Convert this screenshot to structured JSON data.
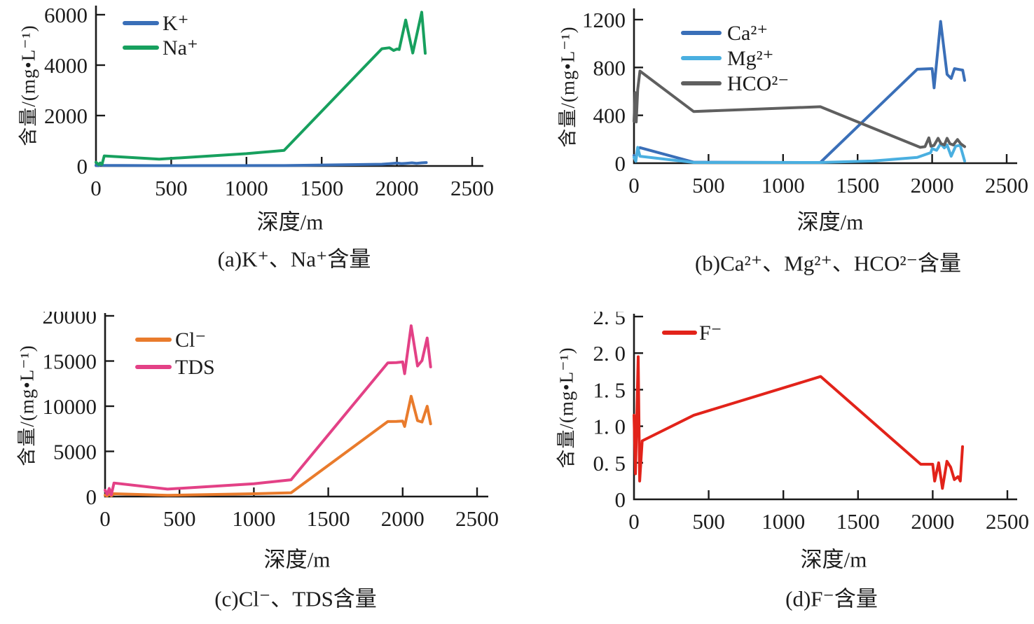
{
  "figure": {
    "background": "#ffffff",
    "text_color": "#1c1c1c",
    "axis_color": "#1a1a1a"
  },
  "chart_data": [
    {
      "id": "a",
      "type": "line",
      "caption": "(a)K⁺、Na⁺含量",
      "xlabel": "深度/m",
      "ylabel": "含量/(mg•L⁻¹)",
      "xlim": [
        0,
        2500
      ],
      "ylim": [
        0,
        6000
      ],
      "xticks": [
        0,
        500,
        1000,
        1500,
        2000,
        2500
      ],
      "xtick_labels": [
        "0",
        "500",
        "1000",
        "1500",
        "2000",
        "2500"
      ],
      "yticks": [
        0,
        2000,
        4000,
        6000
      ],
      "ytick_labels": [
        "0",
        "2000",
        "4000",
        "6000"
      ],
      "grid": false,
      "legend_position": "upper-left-inside",
      "series": [
        {
          "name": "K⁺",
          "color": "#3A6FB8",
          "points": [
            [
              0,
              25
            ],
            [
              15,
              10
            ],
            [
              30,
              45
            ],
            [
              50,
              25
            ],
            [
              400,
              15
            ],
            [
              1250,
              18
            ],
            [
              1900,
              70
            ],
            [
              1950,
              90
            ],
            [
              2000,
              115
            ],
            [
              2030,
              95
            ],
            [
              2060,
              105
            ],
            [
              2100,
              125
            ],
            [
              2130,
              105
            ],
            [
              2165,
              125
            ],
            [
              2195,
              135
            ]
          ]
        },
        {
          "name": "Na⁺",
          "color": "#17A05E",
          "points": [
            [
              0,
              150
            ],
            [
              18,
              50
            ],
            [
              28,
              120
            ],
            [
              40,
              60
            ],
            [
              55,
              400
            ],
            [
              420,
              270
            ],
            [
              1000,
              490
            ],
            [
              1250,
              620
            ],
            [
              1900,
              4650
            ],
            [
              1950,
              4690
            ],
            [
              1978,
              4580
            ],
            [
              2000,
              4640
            ],
            [
              2015,
              4620
            ],
            [
              2058,
              5790
            ],
            [
              2105,
              4480
            ],
            [
              2165,
              6100
            ],
            [
              2188,
              4470
            ]
          ]
        }
      ]
    },
    {
      "id": "b",
      "type": "line",
      "caption": "(b)Ca²⁺、Mg²⁺、HCO²⁻含量",
      "xlabel": "深度/m",
      "ylabel": "含量/(mg•L⁻¹)",
      "xlim": [
        0,
        2500
      ],
      "ylim": [
        0,
        1200
      ],
      "xticks": [
        0,
        500,
        1000,
        1500,
        2000,
        2500
      ],
      "xtick_labels": [
        "0",
        "500",
        "1000",
        "1500",
        "2000",
        "2500"
      ],
      "yticks": [
        0,
        400,
        800,
        1200
      ],
      "ytick_labels": [
        "0",
        "400",
        "800",
        "1200"
      ],
      "grid": false,
      "legend_position": "upper-left-inside",
      "series": [
        {
          "name": "Ca²⁺",
          "color": "#3A6FB8",
          "points": [
            [
              0,
              65
            ],
            [
              12,
              25
            ],
            [
              25,
              115
            ],
            [
              40,
              130
            ],
            [
              400,
              8
            ],
            [
              1250,
              6
            ],
            [
              1900,
              785
            ],
            [
              1955,
              788
            ],
            [
              2000,
              790
            ],
            [
              2013,
              630
            ],
            [
              2057,
              1185
            ],
            [
              2100,
              742
            ],
            [
              2128,
              708
            ],
            [
              2150,
              790
            ],
            [
              2180,
              783
            ],
            [
              2205,
              778
            ],
            [
              2218,
              692
            ]
          ]
        },
        {
          "name": "Mg²⁺",
          "color": "#4AAFE0",
          "points": [
            [
              0,
              50
            ],
            [
              12,
              15
            ],
            [
              25,
              132
            ],
            [
              40,
              58
            ],
            [
              400,
              6
            ],
            [
              1250,
              6
            ],
            [
              1600,
              18
            ],
            [
              1900,
              48
            ],
            [
              1990,
              88
            ],
            [
              2000,
              122
            ],
            [
              2030,
              108
            ],
            [
              2057,
              162
            ],
            [
              2082,
              128
            ],
            [
              2100,
              152
            ],
            [
              2128,
              58
            ],
            [
              2158,
              142
            ],
            [
              2188,
              150
            ],
            [
              2218,
              18
            ]
          ]
        },
        {
          "name": "HCO²⁻",
          "color": "#5F5F5F",
          "points": [
            [
              0,
              350
            ],
            [
              8,
              590
            ],
            [
              15,
              345
            ],
            [
              25,
              615
            ],
            [
              40,
              770
            ],
            [
              400,
              432
            ],
            [
              1250,
              472
            ],
            [
              1920,
              132
            ],
            [
              1952,
              138
            ],
            [
              1978,
              212
            ],
            [
              1992,
              142
            ],
            [
              2012,
              148
            ],
            [
              2040,
              208
            ],
            [
              2060,
              162
            ],
            [
              2082,
              152
            ],
            [
              2100,
              208
            ],
            [
              2120,
              162
            ],
            [
              2142,
              152
            ],
            [
              2170,
              198
            ],
            [
              2192,
              162
            ],
            [
              2218,
              138
            ]
          ]
        }
      ]
    },
    {
      "id": "c",
      "type": "line",
      "caption": "(c)Cl⁻、TDS含量",
      "xlabel": "深度/m",
      "ylabel": "含量/(mg•L⁻¹)",
      "xlim": [
        0,
        2500
      ],
      "ylim": [
        0,
        20000
      ],
      "xticks": [
        0,
        500,
        1000,
        1500,
        2000,
        2500
      ],
      "xtick_labels": [
        "0",
        "500",
        "1000",
        "1500",
        "2000",
        "2500"
      ],
      "yticks": [
        0,
        5000,
        10000,
        15000,
        20000
      ],
      "ytick_labels": [
        "0",
        "5000",
        "10000",
        "15000",
        "20000"
      ],
      "grid": false,
      "legend_position": "upper-left-inside",
      "series": [
        {
          "name": "Cl⁻",
          "color": "#E97B2C",
          "points": [
            [
              0,
              150
            ],
            [
              14,
              60
            ],
            [
              28,
              280
            ],
            [
              42,
              80
            ],
            [
              60,
              310
            ],
            [
              420,
              130
            ],
            [
              1000,
              310
            ],
            [
              1250,
              420
            ],
            [
              1900,
              8300
            ],
            [
              1958,
              8320
            ],
            [
              2000,
              8350
            ],
            [
              2013,
              7750
            ],
            [
              2057,
              11100
            ],
            [
              2100,
              8400
            ],
            [
              2130,
              8250
            ],
            [
              2165,
              10000
            ],
            [
              2188,
              8050
            ]
          ]
        },
        {
          "name": "TDS",
          "color": "#E34186",
          "points": [
            [
              0,
              700
            ],
            [
              14,
              250
            ],
            [
              28,
              900
            ],
            [
              42,
              180
            ],
            [
              60,
              1500
            ],
            [
              420,
              820
            ],
            [
              1000,
              1420
            ],
            [
              1250,
              1850
            ],
            [
              1900,
              14800
            ],
            [
              1958,
              14830
            ],
            [
              2000,
              14900
            ],
            [
              2013,
              13600
            ],
            [
              2057,
              18900
            ],
            [
              2100,
              14450
            ],
            [
              2130,
              15050
            ],
            [
              2165,
              17550
            ],
            [
              2188,
              14350
            ]
          ]
        }
      ]
    },
    {
      "id": "d",
      "type": "line",
      "caption": "(d)F⁻含量",
      "xlabel": "深度/m",
      "ylabel": "含量/(mg•L⁻¹)",
      "xlim": [
        0,
        2500
      ],
      "ylim": [
        0,
        2.5
      ],
      "xticks": [
        0,
        500,
        1000,
        1500,
        2000,
        2500
      ],
      "xtick_labels": [
        "0",
        "500",
        "1000",
        "1500",
        "2000",
        "2500"
      ],
      "yticks": [
        0,
        0.5,
        1.0,
        1.5,
        2.0,
        2.5
      ],
      "ytick_labels": [
        "0",
        "0. 5",
        "1. 0",
        "1. 5",
        "2. 0",
        "2. 5"
      ],
      "grid": false,
      "legend_position": "upper-left-inside",
      "series": [
        {
          "name": "F⁻",
          "color": "#E2231A",
          "points": [
            [
              0,
              1.15
            ],
            [
              10,
              0.35
            ],
            [
              18,
              1.05
            ],
            [
              28,
              1.95
            ],
            [
              38,
              0.25
            ],
            [
              55,
              0.8
            ],
            [
              400,
              1.15
            ],
            [
              1250,
              1.68
            ],
            [
              1920,
              0.48
            ],
            [
              2000,
              0.48
            ],
            [
              2013,
              0.25
            ],
            [
              2040,
              0.5
            ],
            [
              2065,
              0.15
            ],
            [
              2095,
              0.52
            ],
            [
              2120,
              0.44
            ],
            [
              2145,
              0.27
            ],
            [
              2170,
              0.31
            ],
            [
              2185,
              0.25
            ],
            [
              2200,
              0.72
            ]
          ]
        }
      ]
    }
  ]
}
